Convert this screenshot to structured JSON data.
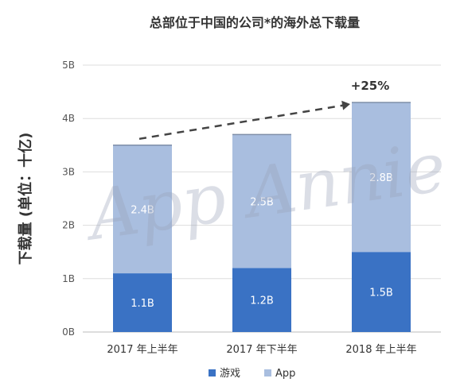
{
  "chart_data": {
    "type": "bar",
    "stacked": true,
    "title": "总部位于中国的公司*的海外总下载量",
    "ylabel": "下载量 (单位：十亿)",
    "xlabel": "",
    "categories": [
      "2017 年上半年",
      "2017 年下半年",
      "2018 年上半年"
    ],
    "series": [
      {
        "name": "游戏",
        "values": [
          1.1,
          1.2,
          1.5
        ],
        "labels": [
          "1.1B",
          "1.2B",
          "1.5B"
        ],
        "color": "#3a72c4"
      },
      {
        "name": "App",
        "values": [
          2.4,
          2.5,
          2.8
        ],
        "labels": [
          "2.4B",
          "2.5B",
          "2.8B"
        ],
        "color": "#a9bedf"
      }
    ],
    "ylim": [
      0,
      5
    ],
    "yticks": [
      0,
      1,
      2,
      3,
      4,
      5
    ],
    "ytick_labels": [
      "0B",
      "1B",
      "2B",
      "3B",
      "4B",
      "5B"
    ],
    "grid": true,
    "legend": "bottom",
    "annotation": {
      "text": "+25%",
      "style": "dashed-arrow",
      "from": 0,
      "to": 2
    },
    "watermark": "App Annie"
  }
}
